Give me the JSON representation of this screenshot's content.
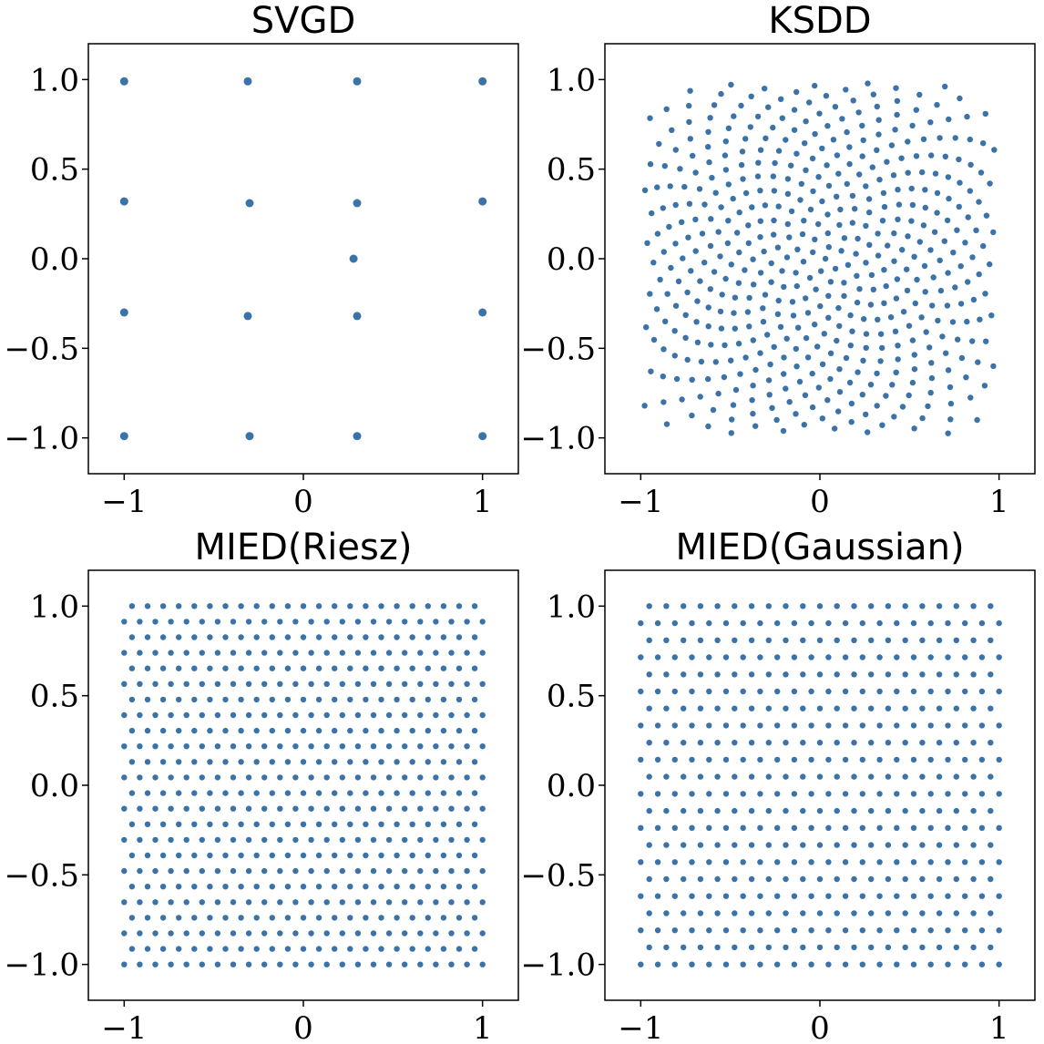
{
  "colors": {
    "points": "#3b72a8",
    "axes": "#000000",
    "background": "#ffffff"
  },
  "chart_data": [
    {
      "type": "scatter",
      "title": "SVGD",
      "xlim": [
        -1.2,
        1.2
      ],
      "ylim": [
        -1.2,
        1.2
      ],
      "xticks": [
        -1,
        0,
        1
      ],
      "xtick_labels": [
        "−1",
        "0",
        "1"
      ],
      "yticks": [
        1.0,
        0.5,
        0.0,
        -0.5,
        -1.0
      ],
      "ytick_labels": [
        "1.0",
        "0.5",
        "0.0",
        "−0.5",
        "−1.0"
      ],
      "grid": false,
      "pattern": "clusters",
      "points": [
        [
          -1.0,
          0.99
        ],
        [
          -0.31,
          0.99
        ],
        [
          0.3,
          0.99
        ],
        [
          1.0,
          0.99
        ],
        [
          -1.0,
          0.32
        ],
        [
          -0.3,
          0.31
        ],
        [
          0.3,
          0.31
        ],
        [
          1.0,
          0.32
        ],
        [
          -1.0,
          -0.3
        ],
        [
          -0.31,
          -0.32
        ],
        [
          0.3,
          -0.32
        ],
        [
          1.0,
          -0.3
        ],
        [
          -1.0,
          -0.99
        ],
        [
          -0.3,
          -0.99
        ],
        [
          0.3,
          -0.99
        ],
        [
          1.0,
          -0.99
        ],
        [
          0.28,
          0.0
        ]
      ]
    },
    {
      "type": "scatter",
      "title": "KSDD",
      "xlim": [
        -1.2,
        1.2
      ],
      "ylim": [
        -1.2,
        1.2
      ],
      "xticks": [
        -1,
        0,
        1
      ],
      "xtick_labels": [
        "−1",
        "0",
        "1"
      ],
      "yticks": [
        1.0,
        0.5,
        0.0,
        -0.5,
        -1.0
      ],
      "ytick_labels": [
        "1.0",
        "0.5",
        "0.0",
        "−0.5",
        "−1.0"
      ],
      "grid": false,
      "pattern": "sunflower",
      "point_count": 500,
      "extent": [
        -0.98,
        0.98
      ]
    },
    {
      "type": "scatter",
      "title": "MIED(Riesz)",
      "xlim": [
        -1.2,
        1.2
      ],
      "ylim": [
        -1.2,
        1.2
      ],
      "xticks": [
        -1,
        0,
        1
      ],
      "xtick_labels": [
        "−1",
        "0",
        "1"
      ],
      "yticks": [
        1.0,
        0.5,
        0.0,
        -0.5,
        -1.0
      ],
      "ytick_labels": [
        "1.0",
        "0.5",
        "0.0",
        "−0.5",
        "−1.0"
      ],
      "grid": false,
      "pattern": "grid",
      "grid_size": 24,
      "extent": [
        -1.0,
        1.0
      ]
    },
    {
      "type": "scatter",
      "title": "MIED(Gaussian)",
      "xlim": [
        -1.2,
        1.2
      ],
      "ylim": [
        -1.2,
        1.2
      ],
      "xticks": [
        -1,
        0,
        1
      ],
      "xtick_labels": [
        "−1",
        "0",
        "1"
      ],
      "yticks": [
        1.0,
        0.5,
        0.0,
        -0.5,
        -1.0
      ],
      "ytick_labels": [
        "1.0",
        "0.5",
        "0.0",
        "−0.5",
        "−1.0"
      ],
      "grid": false,
      "pattern": "grid",
      "grid_size": 22,
      "extent": [
        -1.0,
        1.0
      ]
    }
  ]
}
